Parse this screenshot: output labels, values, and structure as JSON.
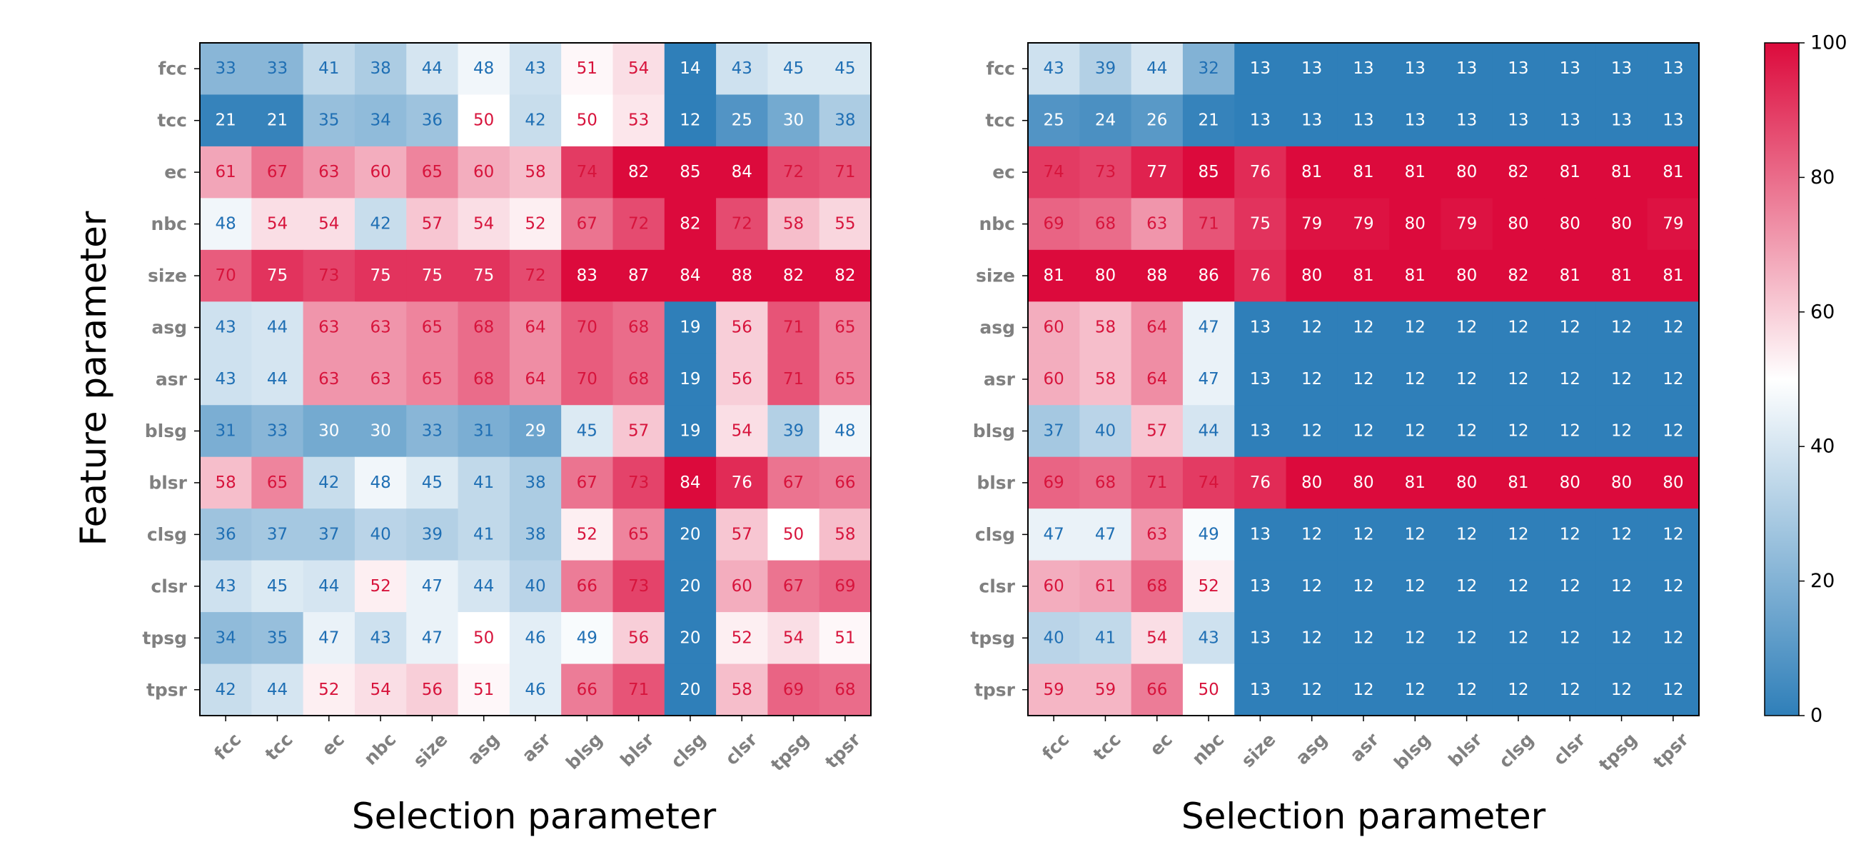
{
  "chart_data": [
    {
      "type": "heatmap",
      "title": "",
      "xlabel": "Selection parameter",
      "ylabel": "Feature parameter",
      "x_categories": [
        "fcc",
        "tcc",
        "ec",
        "nbc",
        "size",
        "asg",
        "asr",
        "blsg",
        "blsr",
        "clsg",
        "clsr",
        "tpsg",
        "tpsr"
      ],
      "y_categories": [
        "fcc",
        "tcc",
        "ec",
        "nbc",
        "size",
        "asg",
        "asr",
        "blsg",
        "blsr",
        "clsg",
        "clsr",
        "tpsg",
        "tpsr"
      ],
      "values": [
        [
          33,
          33,
          41,
          38,
          44,
          48,
          43,
          51,
          54,
          14,
          43,
          45,
          45
        ],
        [
          21,
          21,
          35,
          34,
          36,
          50,
          42,
          50,
          53,
          12,
          25,
          30,
          38
        ],
        [
          61,
          67,
          63,
          60,
          65,
          60,
          58,
          74,
          82,
          85,
          84,
          72,
          71
        ],
        [
          48,
          54,
          54,
          42,
          57,
          54,
          52,
          67,
          72,
          82,
          72,
          58,
          55
        ],
        [
          70,
          75,
          73,
          75,
          75,
          75,
          72,
          83,
          87,
          84,
          88,
          82,
          82
        ],
        [
          43,
          44,
          63,
          63,
          65,
          68,
          64,
          70,
          68,
          19,
          56,
          71,
          65
        ],
        [
          43,
          44,
          63,
          63,
          65,
          68,
          64,
          70,
          68,
          19,
          56,
          71,
          65
        ],
        [
          31,
          33,
          30,
          30,
          33,
          31,
          29,
          45,
          57,
          19,
          54,
          39,
          48
        ],
        [
          58,
          65,
          42,
          48,
          45,
          41,
          38,
          67,
          73,
          84,
          76,
          67,
          66
        ],
        [
          36,
          37,
          37,
          40,
          39,
          41,
          38,
          52,
          65,
          20,
          57,
          50,
          58
        ],
        [
          43,
          45,
          44,
          52,
          47,
          44,
          40,
          66,
          73,
          20,
          60,
          67,
          69
        ],
        [
          34,
          35,
          47,
          43,
          47,
          50,
          46,
          49,
          56,
          20,
          52,
          54,
          51
        ],
        [
          42,
          44,
          52,
          54,
          56,
          51,
          46,
          66,
          71,
          20,
          58,
          69,
          68
        ]
      ]
    },
    {
      "type": "heatmap",
      "title": "",
      "xlabel": "Selection parameter",
      "ylabel": "",
      "x_categories": [
        "fcc",
        "tcc",
        "ec",
        "nbc",
        "size",
        "asg",
        "asr",
        "blsg",
        "blsr",
        "clsg",
        "clsr",
        "tpsg",
        "tpsr"
      ],
      "y_categories": [
        "fcc",
        "tcc",
        "ec",
        "nbc",
        "size",
        "asg",
        "asr",
        "blsg",
        "blsr",
        "clsg",
        "clsr",
        "tpsg",
        "tpsr"
      ],
      "values": [
        [
          43,
          39,
          44,
          32,
          13,
          13,
          13,
          13,
          13,
          13,
          13,
          13,
          13
        ],
        [
          25,
          24,
          26,
          21,
          13,
          13,
          13,
          13,
          13,
          13,
          13,
          13,
          13
        ],
        [
          74,
          73,
          77,
          85,
          76,
          81,
          81,
          81,
          80,
          82,
          81,
          81,
          81
        ],
        [
          69,
          68,
          63,
          71,
          75,
          79,
          79,
          80,
          79,
          80,
          80,
          80,
          79
        ],
        [
          81,
          80,
          88,
          86,
          76,
          80,
          81,
          81,
          80,
          82,
          81,
          81,
          81
        ],
        [
          60,
          58,
          64,
          47,
          13,
          12,
          12,
          12,
          12,
          12,
          12,
          12,
          12
        ],
        [
          60,
          58,
          64,
          47,
          13,
          12,
          12,
          12,
          12,
          12,
          12,
          12,
          12
        ],
        [
          37,
          40,
          57,
          44,
          13,
          12,
          12,
          12,
          12,
          12,
          12,
          12,
          12
        ],
        [
          69,
          68,
          71,
          74,
          76,
          80,
          80,
          81,
          80,
          81,
          80,
          80,
          80
        ],
        [
          47,
          47,
          63,
          49,
          13,
          12,
          12,
          12,
          12,
          12,
          12,
          12,
          12
        ],
        [
          60,
          61,
          68,
          52,
          13,
          12,
          12,
          12,
          12,
          12,
          12,
          12,
          12
        ],
        [
          40,
          41,
          54,
          43,
          13,
          12,
          12,
          12,
          12,
          12,
          12,
          12,
          12
        ],
        [
          59,
          59,
          66,
          50,
          13,
          12,
          12,
          12,
          12,
          12,
          12,
          12,
          12
        ]
      ]
    }
  ],
  "colorbar": {
    "min": 0,
    "max": 100,
    "ticks": [
      "0",
      "20",
      "40",
      "60",
      "80",
      "100"
    ],
    "low_color": "#2f7fb9",
    "mid_color": "#ffffff",
    "high_color": "#dc0a3c",
    "low_text_color": "#1f6fb4",
    "high_text_color": "#d7143c",
    "extreme_text_color": "#ffffff"
  }
}
